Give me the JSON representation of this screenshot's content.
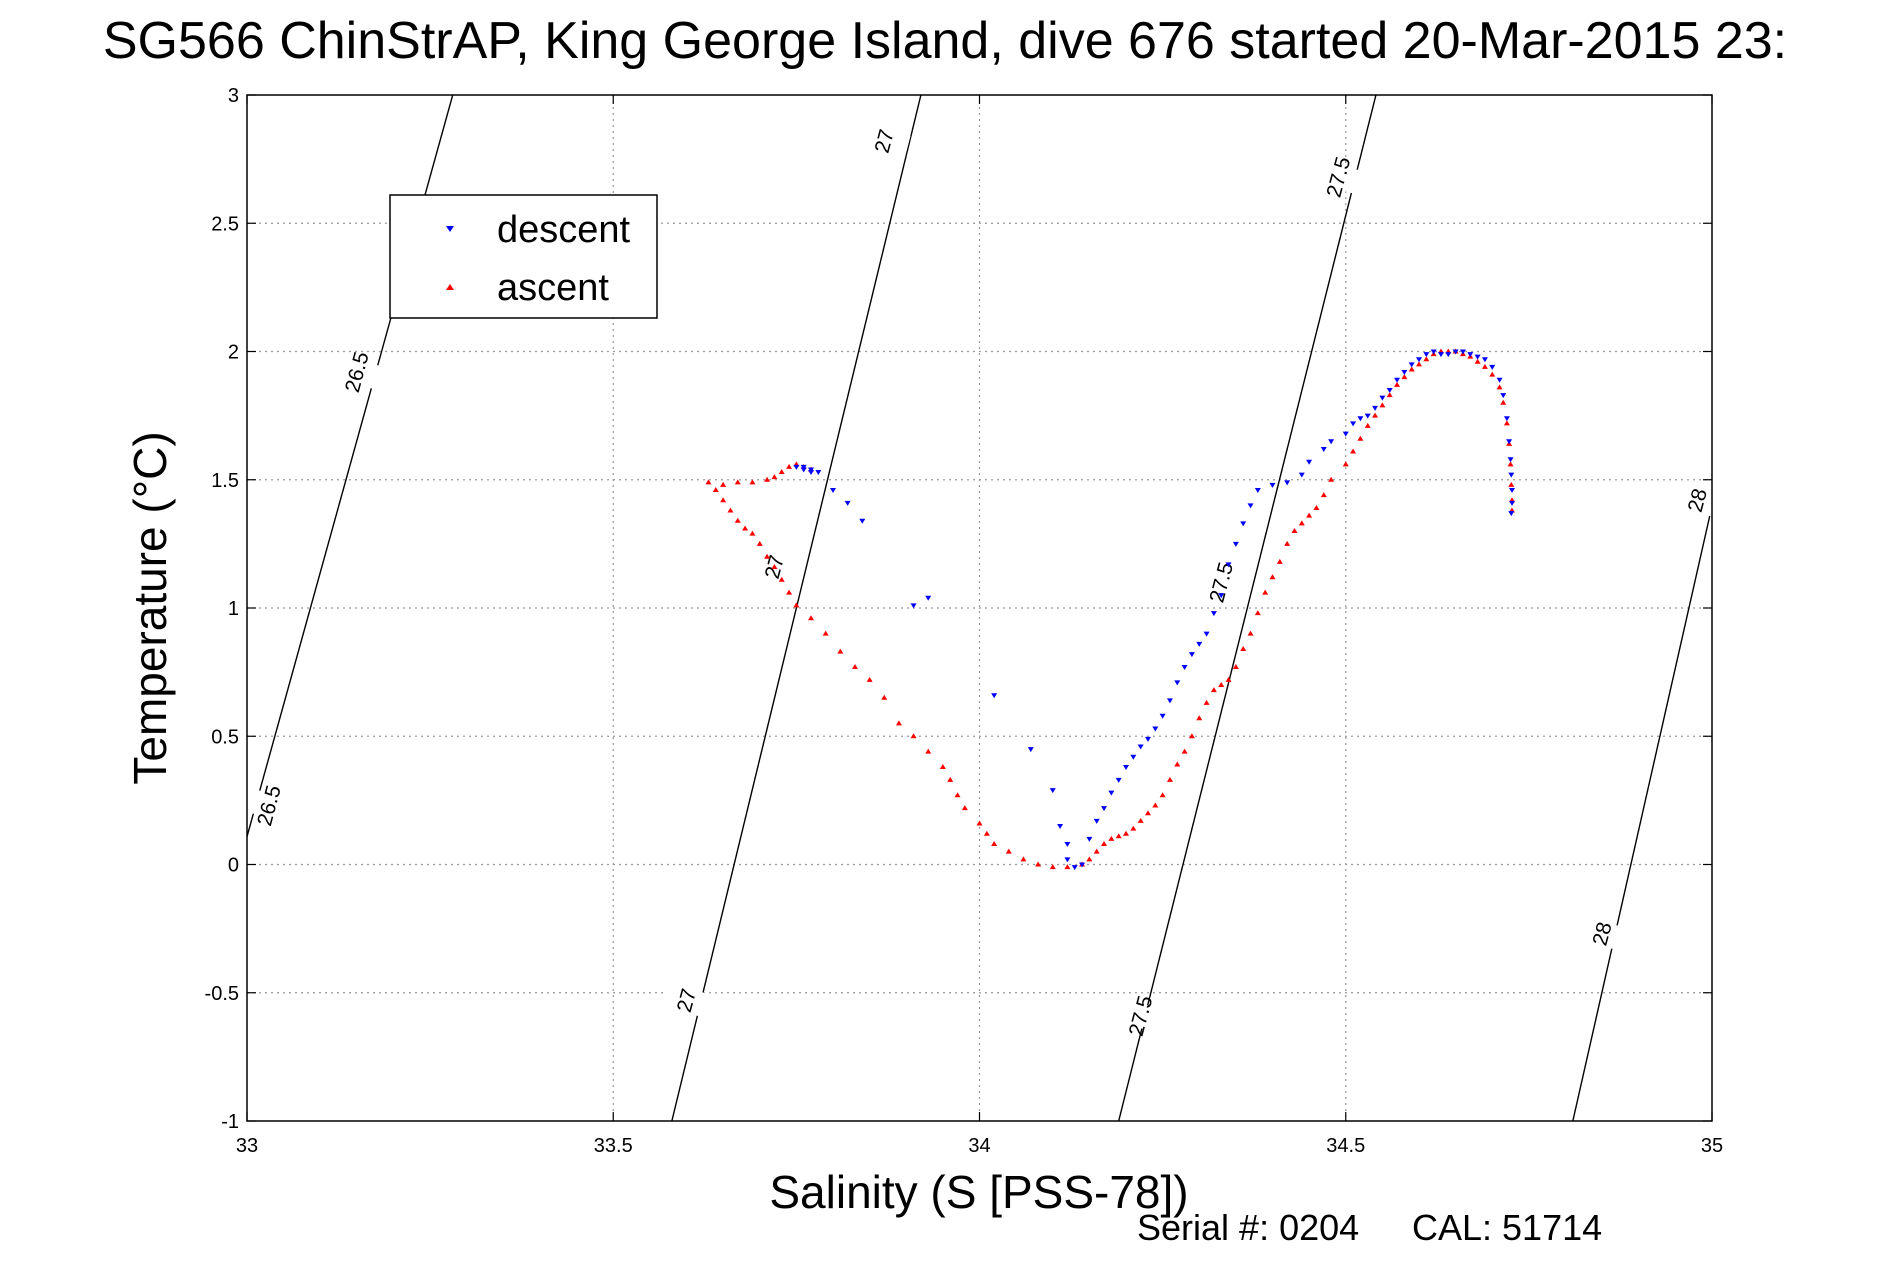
{
  "chart_data": {
    "type": "scatter",
    "title": "SG566 ChinStrAP, King George Island, dive 676 started 20-Mar-2015 23:",
    "xlabel": "Salinity (S [PSS-78])",
    "ylabel": "Temperature (°C)",
    "xlim": [
      33,
      35
    ],
    "ylim": [
      -1,
      3
    ],
    "x_ticks": [
      33,
      33.5,
      34,
      34.5,
      35
    ],
    "x_tick_labels": [
      "33",
      "33.5",
      "34",
      "34.5",
      "35"
    ],
    "y_ticks": [
      -1,
      -0.5,
      0,
      0.5,
      1,
      1.5,
      2,
      2.5,
      3
    ],
    "y_tick_labels": [
      "-1",
      "-0.5",
      "0",
      "0.5",
      "1",
      "1.5",
      "2",
      "2.5",
      "3"
    ],
    "grid": true,
    "legend_position": "top-left",
    "series": [
      {
        "name": "descent",
        "color": "#0000ff",
        "marker": "triangle-down",
        "points": [
          [
            33.75,
            1.55
          ],
          [
            33.76,
            1.54
          ],
          [
            33.77,
            1.53
          ],
          [
            33.78,
            1.53
          ],
          [
            33.77,
            1.54
          ],
          [
            33.76,
            1.55
          ],
          [
            33.8,
            1.46
          ],
          [
            33.82,
            1.41
          ],
          [
            33.84,
            1.34
          ],
          [
            33.91,
            1.01
          ],
          [
            33.93,
            1.04
          ],
          [
            34.02,
            0.66
          ],
          [
            34.07,
            0.45
          ],
          [
            34.1,
            0.29
          ],
          [
            34.11,
            0.15
          ],
          [
            34.12,
            0.08
          ],
          [
            34.12,
            0.02
          ],
          [
            34.13,
            -0.01
          ],
          [
            34.14,
            0.0
          ],
          [
            34.15,
            0.1
          ],
          [
            34.16,
            0.17
          ],
          [
            34.17,
            0.22
          ],
          [
            34.18,
            0.28
          ],
          [
            34.19,
            0.33
          ],
          [
            34.2,
            0.38
          ],
          [
            34.21,
            0.42
          ],
          [
            34.22,
            0.46
          ],
          [
            34.23,
            0.49
          ],
          [
            34.24,
            0.53
          ],
          [
            34.25,
            0.58
          ],
          [
            34.26,
            0.64
          ],
          [
            34.27,
            0.71
          ],
          [
            34.28,
            0.77
          ],
          [
            34.29,
            0.82
          ],
          [
            34.3,
            0.86
          ],
          [
            34.31,
            0.9
          ],
          [
            34.32,
            0.98
          ],
          [
            34.33,
            1.05
          ],
          [
            34.34,
            1.17
          ],
          [
            34.35,
            1.25
          ],
          [
            34.36,
            1.33
          ],
          [
            34.37,
            1.4
          ],
          [
            34.38,
            1.46
          ],
          [
            34.4,
            1.48
          ],
          [
            34.42,
            1.49
          ],
          [
            34.44,
            1.52
          ],
          [
            34.45,
            1.57
          ],
          [
            34.47,
            1.62
          ],
          [
            34.48,
            1.65
          ],
          [
            34.5,
            1.68
          ],
          [
            34.51,
            1.72
          ],
          [
            34.52,
            1.74
          ],
          [
            34.53,
            1.75
          ],
          [
            34.54,
            1.78
          ],
          [
            34.55,
            1.82
          ],
          [
            34.56,
            1.85
          ],
          [
            34.57,
            1.89
          ],
          [
            34.58,
            1.92
          ],
          [
            34.59,
            1.95
          ],
          [
            34.6,
            1.97
          ],
          [
            34.61,
            1.99
          ],
          [
            34.62,
            2.0
          ],
          [
            34.63,
            1.99
          ],
          [
            34.64,
            1.99
          ],
          [
            34.65,
            2.0
          ],
          [
            34.66,
            2.0
          ],
          [
            34.67,
            1.99
          ],
          [
            34.68,
            1.98
          ],
          [
            34.69,
            1.97
          ],
          [
            34.7,
            1.94
          ],
          [
            34.71,
            1.89
          ],
          [
            34.715,
            1.83
          ],
          [
            34.72,
            1.74
          ],
          [
            34.723,
            1.65
          ],
          [
            34.725,
            1.58
          ],
          [
            34.726,
            1.52
          ],
          [
            34.727,
            1.46
          ],
          [
            34.727,
            1.41
          ],
          [
            34.726,
            1.37
          ]
        ]
      },
      {
        "name": "ascent",
        "color": "#ff0000",
        "marker": "triangle-up",
        "points": [
          [
            33.63,
            1.49
          ],
          [
            33.65,
            1.48
          ],
          [
            33.67,
            1.49
          ],
          [
            33.69,
            1.49
          ],
          [
            33.71,
            1.5
          ],
          [
            33.72,
            1.51
          ],
          [
            33.73,
            1.53
          ],
          [
            33.74,
            1.55
          ],
          [
            33.75,
            1.56
          ],
          [
            33.76,
            1.55
          ],
          [
            33.77,
            1.54
          ],
          [
            33.64,
            1.46
          ],
          [
            33.65,
            1.42
          ],
          [
            33.66,
            1.38
          ],
          [
            33.67,
            1.34
          ],
          [
            33.68,
            1.31
          ],
          [
            33.69,
            1.29
          ],
          [
            33.7,
            1.25
          ],
          [
            33.71,
            1.2
          ],
          [
            33.72,
            1.16
          ],
          [
            33.73,
            1.11
          ],
          [
            33.74,
            1.06
          ],
          [
            33.75,
            1.01
          ],
          [
            33.77,
            0.96
          ],
          [
            33.79,
            0.9
          ],
          [
            33.81,
            0.83
          ],
          [
            33.83,
            0.77
          ],
          [
            33.85,
            0.72
          ],
          [
            33.87,
            0.65
          ],
          [
            33.89,
            0.55
          ],
          [
            33.91,
            0.5
          ],
          [
            33.93,
            0.44
          ],
          [
            33.95,
            0.38
          ],
          [
            33.96,
            0.33
          ],
          [
            33.97,
            0.27
          ],
          [
            33.98,
            0.22
          ],
          [
            34.0,
            0.16
          ],
          [
            34.01,
            0.12
          ],
          [
            34.02,
            0.08
          ],
          [
            34.04,
            0.05
          ],
          [
            34.06,
            0.02
          ],
          [
            34.08,
            0.0
          ],
          [
            34.1,
            -0.01
          ],
          [
            34.12,
            -0.01
          ],
          [
            34.14,
            0.0
          ],
          [
            34.15,
            0.02
          ],
          [
            34.16,
            0.05
          ],
          [
            34.17,
            0.08
          ],
          [
            34.18,
            0.1
          ],
          [
            34.19,
            0.11
          ],
          [
            34.2,
            0.12
          ],
          [
            34.21,
            0.14
          ],
          [
            34.22,
            0.17
          ],
          [
            34.23,
            0.2
          ],
          [
            34.24,
            0.23
          ],
          [
            34.25,
            0.27
          ],
          [
            34.26,
            0.33
          ],
          [
            34.27,
            0.39
          ],
          [
            34.28,
            0.44
          ],
          [
            34.29,
            0.5
          ],
          [
            34.3,
            0.57
          ],
          [
            34.31,
            0.63
          ],
          [
            34.32,
            0.68
          ],
          [
            34.33,
            0.7
          ],
          [
            34.34,
            0.72
          ],
          [
            34.35,
            0.77
          ],
          [
            34.36,
            0.84
          ],
          [
            34.37,
            0.9
          ],
          [
            34.38,
            0.98
          ],
          [
            34.39,
            1.06
          ],
          [
            34.4,
            1.12
          ],
          [
            34.41,
            1.18
          ],
          [
            34.42,
            1.25
          ],
          [
            34.43,
            1.3
          ],
          [
            34.44,
            1.33
          ],
          [
            34.45,
            1.36
          ],
          [
            34.46,
            1.39
          ],
          [
            34.47,
            1.44
          ],
          [
            34.48,
            1.5
          ],
          [
            34.5,
            1.56
          ],
          [
            34.51,
            1.61
          ],
          [
            34.52,
            1.66
          ],
          [
            34.53,
            1.71
          ],
          [
            34.54,
            1.75
          ],
          [
            34.55,
            1.79
          ],
          [
            34.56,
            1.83
          ],
          [
            34.57,
            1.87
          ],
          [
            34.58,
            1.9
          ],
          [
            34.59,
            1.93
          ],
          [
            34.6,
            1.95
          ],
          [
            34.61,
            1.97
          ],
          [
            34.62,
            1.99
          ],
          [
            34.63,
            2.0
          ],
          [
            34.64,
            2.0
          ],
          [
            34.65,
            2.0
          ],
          [
            34.66,
            1.99
          ],
          [
            34.67,
            1.98
          ],
          [
            34.68,
            1.96
          ],
          [
            34.69,
            1.94
          ],
          [
            34.7,
            1.91
          ],
          [
            34.71,
            1.86
          ],
          [
            34.715,
            1.8
          ],
          [
            34.72,
            1.72
          ],
          [
            34.723,
            1.64
          ],
          [
            34.725,
            1.56
          ],
          [
            34.726,
            1.48
          ],
          [
            34.727,
            1.42
          ],
          [
            34.727,
            1.38
          ]
        ]
      }
    ],
    "density_contours": [
      {
        "label": "26.5",
        "from": [
          32.97,
          -0.2
        ],
        "to": [
          33.31,
          3.3
        ]
      },
      {
        "label": "27",
        "from": [
          33.58,
          -1.0
        ],
        "to": [
          33.92,
          3.0
        ]
      },
      {
        "label": "27.5",
        "from": [
          34.19,
          -1.0
        ],
        "to": [
          34.55,
          3.1
        ]
      },
      {
        "label": "28",
        "from": [
          34.81,
          -1.0
        ],
        "to": [
          35.02,
          1.65
        ]
      }
    ],
    "contour_labels": [
      {
        "text": "26.5",
        "x": 33.15,
        "y": 1.92
      },
      {
        "text": "26.5",
        "x": 33.03,
        "y": 0.23
      },
      {
        "text": "27",
        "x": 33.87,
        "y": 2.82
      },
      {
        "text": "27",
        "x": 33.72,
        "y": 1.16
      },
      {
        "text": "27",
        "x": 33.6,
        "y": -0.53
      },
      {
        "text": "27.5",
        "x": 34.49,
        "y": 2.68
      },
      {
        "text": "27.5",
        "x": 34.33,
        "y": 1.1
      },
      {
        "text": "27.5",
        "x": 34.22,
        "y": -0.59
      },
      {
        "text": "28",
        "x": 34.98,
        "y": 1.42
      },
      {
        "text": "28",
        "x": 34.85,
        "y": -0.27
      }
    ]
  },
  "footer": {
    "serial": "Serial #: 0204",
    "cal": "CAL: 51714"
  }
}
